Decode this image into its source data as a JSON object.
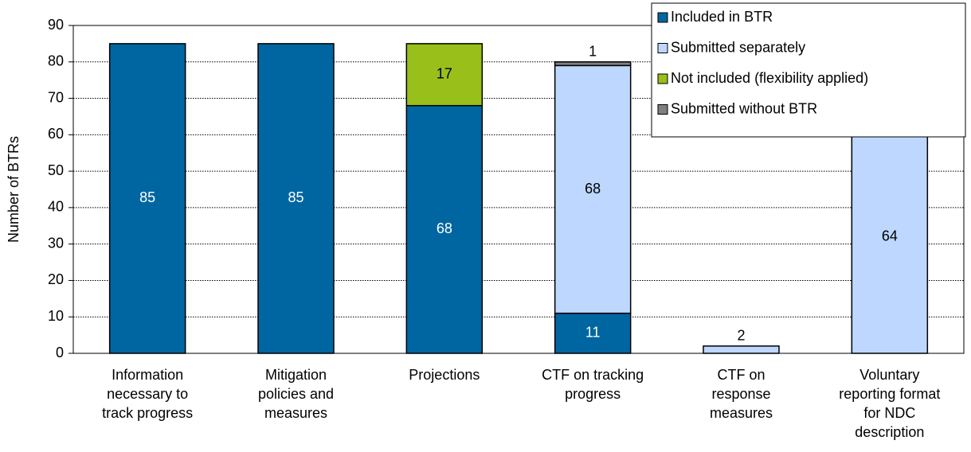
{
  "chart_data": {
    "type": "stacked_bar",
    "ylabel": "Number of BTRs",
    "categories": [
      "Information\nnecessary to\ntrack progress",
      "Mitigation\npolicies and\nmeasures",
      "Projections",
      "CTF on tracking\nprogress",
      "CTF on\nresponse\nmeasures",
      "Voluntary\nreporting format\nfor NDC\ndescription"
    ],
    "series": [
      {
        "name": "Included in BTR",
        "color": "#0066a1",
        "label_color": "#ffffff",
        "values": [
          85,
          85,
          68,
          11,
          null,
          null
        ]
      },
      {
        "name": "Submitted separately",
        "color": "#bdd7ff",
        "label_color": "#000000",
        "values": [
          null,
          null,
          null,
          68,
          2,
          64
        ]
      },
      {
        "name": "Not included (flexibility applied)",
        "color": "#99bf1a",
        "label_color": "#000000",
        "values": [
          null,
          null,
          17,
          null,
          null,
          null
        ]
      },
      {
        "name": "Submitted without BTR",
        "color": "#808080",
        "label_color": "#000000",
        "values": [
          null,
          null,
          null,
          1,
          null,
          null
        ]
      }
    ],
    "ylim": [
      0,
      90
    ],
    "yticks": [
      0,
      10,
      20,
      30,
      40,
      50,
      60,
      70,
      80,
      90
    ],
    "grid": true,
    "legend": "upper right"
  }
}
